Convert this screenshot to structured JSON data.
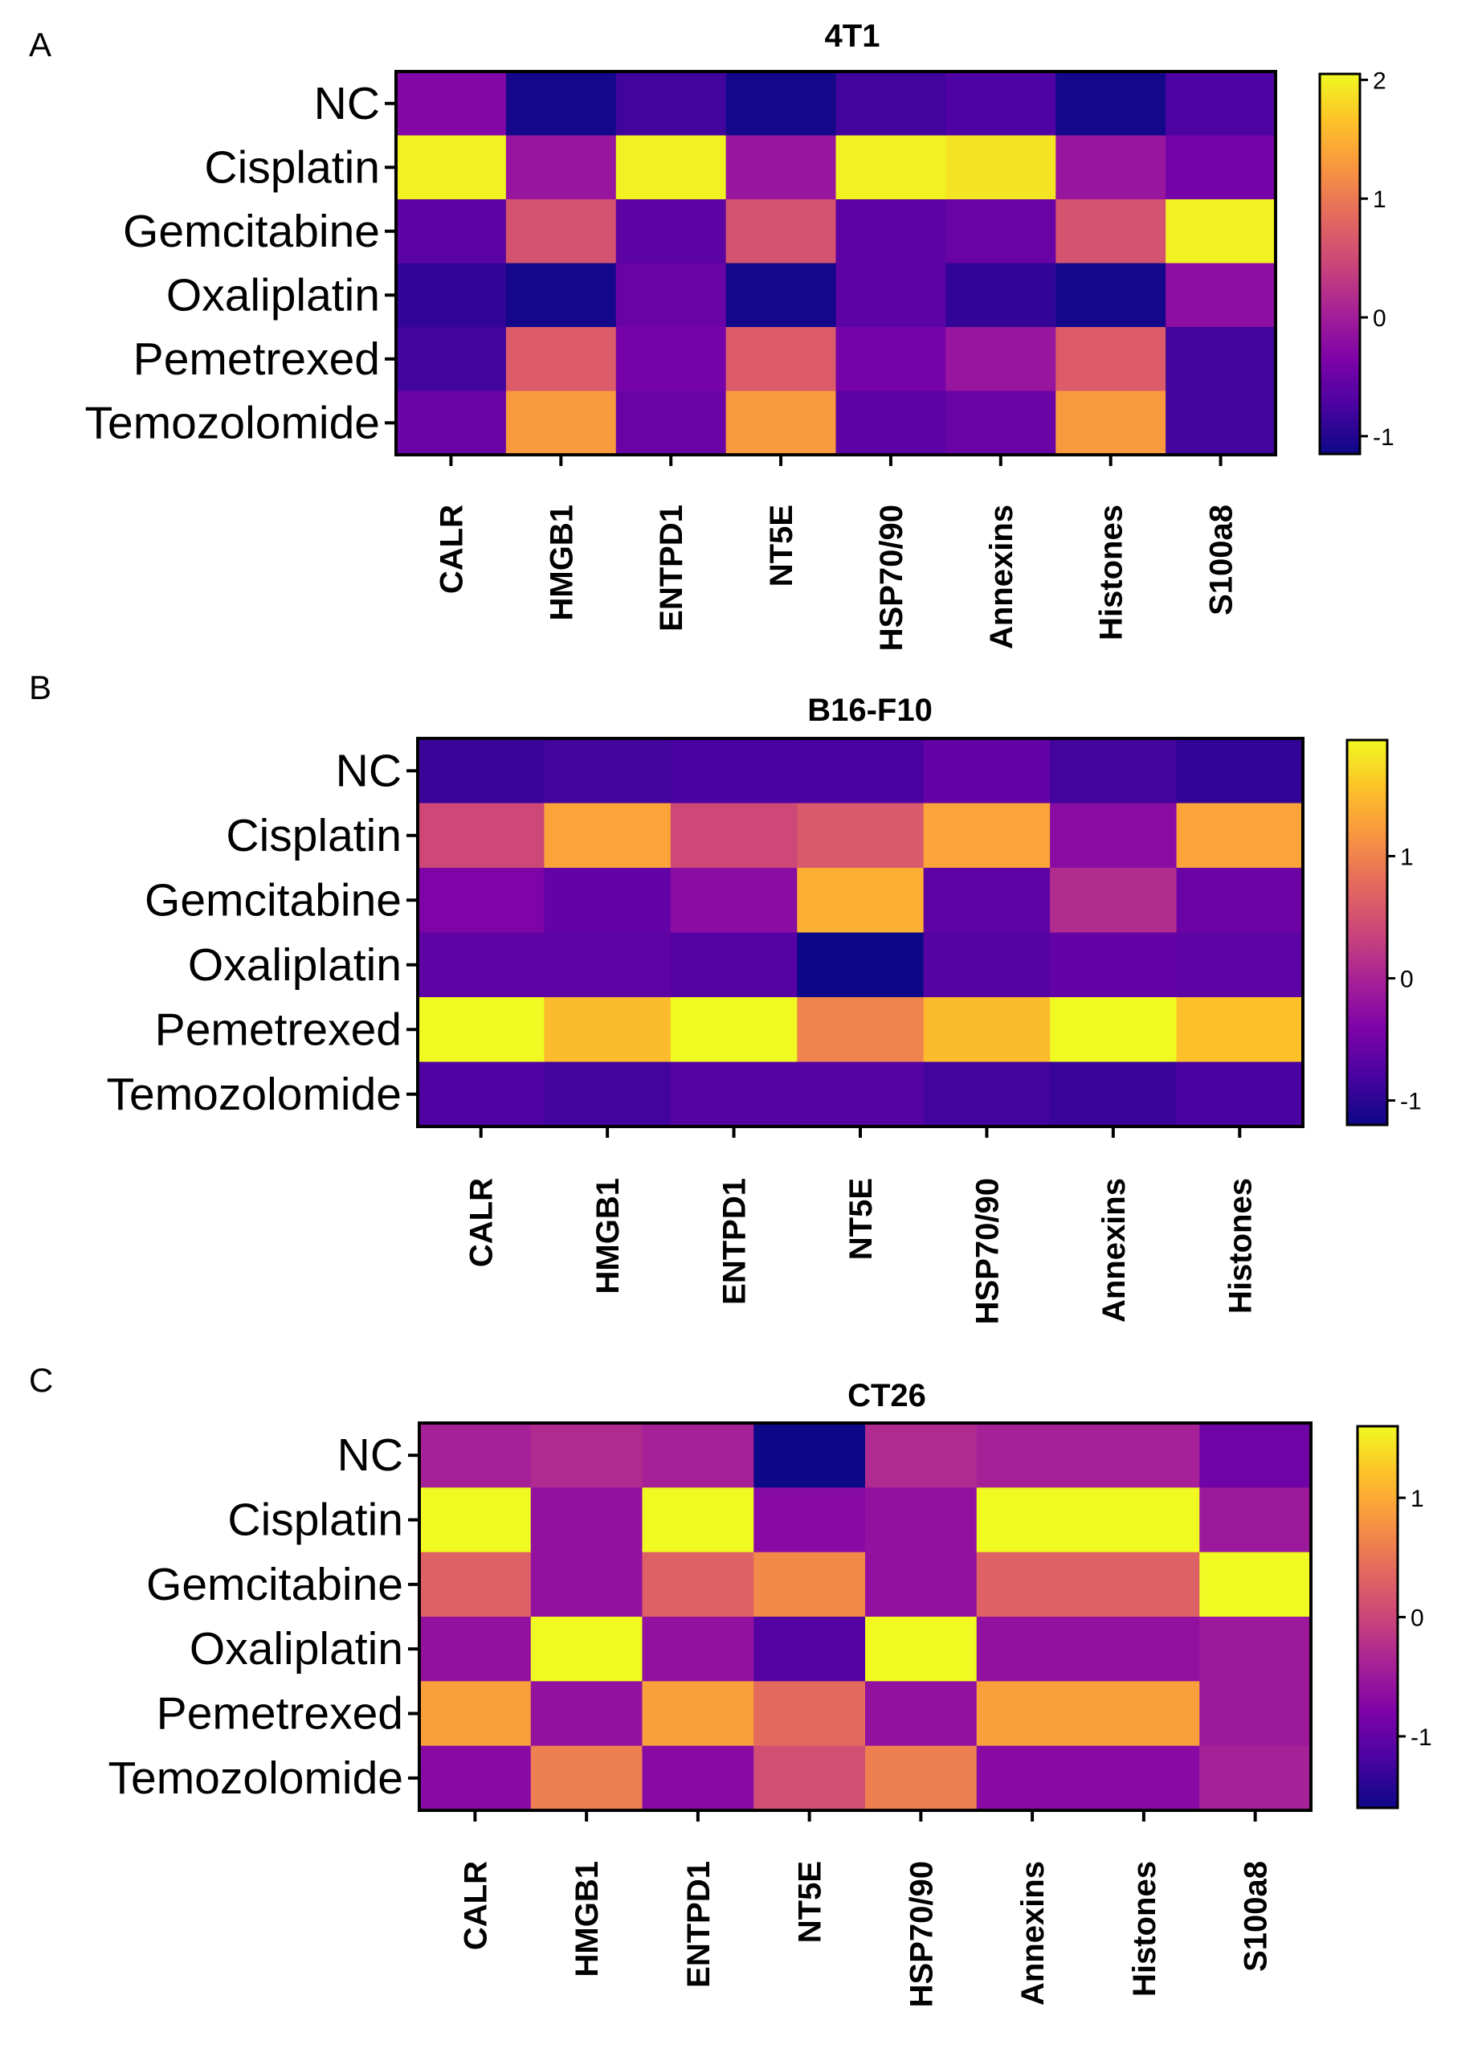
{
  "figure": {
    "panels": [
      "A",
      "B",
      "C"
    ]
  },
  "chart_data": [
    {
      "type": "heatmap",
      "panel": "A",
      "title": "4T1",
      "rows": [
        "NC",
        "Cisplatin",
        "Gemcitabine",
        "Oxaliplatin",
        "Pemetrexed",
        "Temozolomide"
      ],
      "columns": [
        "CALR",
        "HMGB1",
        "ENTPD1",
        "NT5E",
        "HSP70/90",
        "Annexins",
        "Histones",
        "S100a8"
      ],
      "values": [
        [
          -0.3,
          -1.1,
          -0.8,
          -1.1,
          -0.8,
          -0.7,
          -1.1,
          -0.7
        ],
        [
          2.0,
          -0.1,
          2.0,
          -0.1,
          2.0,
          1.9,
          -0.1,
          -0.4
        ],
        [
          -0.6,
          0.6,
          -0.6,
          0.6,
          -0.6,
          -0.5,
          0.6,
          2.0
        ],
        [
          -0.9,
          -1.1,
          -0.5,
          -1.1,
          -0.6,
          -0.9,
          -1.1,
          -0.2
        ],
        [
          -0.8,
          0.7,
          -0.4,
          0.7,
          -0.4,
          -0.1,
          0.7,
          -0.8
        ],
        [
          -0.5,
          1.3,
          -0.5,
          1.3,
          -0.6,
          -0.5,
          1.3,
          -0.8
        ]
      ],
      "colorbar": {
        "min": -1.15,
        "max": 2.05,
        "ticks": [
          2,
          1,
          0,
          -1
        ],
        "tick_labels": [
          "2",
          "1",
          "0",
          "-1"
        ]
      },
      "colormap": "plasma"
    },
    {
      "type": "heatmap",
      "panel": "B",
      "title": "B16-F10",
      "rows": [
        "NC",
        "Cisplatin",
        "Gemcitabine",
        "Oxaliplatin",
        "Pemetrexed",
        "Temozolomide"
      ],
      "columns": [
        "CALR",
        "HMGB1",
        "ENTPD1",
        "NT5E",
        "HSP70/90",
        "Annexins",
        "Histones"
      ],
      "values": [
        [
          -0.9,
          -0.85,
          -0.8,
          -0.8,
          -0.6,
          -0.85,
          -0.95
        ],
        [
          0.4,
          1.3,
          0.4,
          0.6,
          1.3,
          -0.3,
          1.3
        ],
        [
          -0.4,
          -0.6,
          -0.3,
          1.4,
          -0.65,
          0.1,
          -0.55
        ],
        [
          -0.65,
          -0.65,
          -0.7,
          -1.2,
          -0.7,
          -0.6,
          -0.65
        ],
        [
          1.95,
          1.5,
          1.95,
          1.0,
          1.5,
          1.95,
          1.55
        ],
        [
          -0.75,
          -0.85,
          -0.7,
          -0.7,
          -0.85,
          -0.9,
          -0.8
        ]
      ],
      "colorbar": {
        "min": -1.2,
        "max": 1.95,
        "ticks": [
          1,
          0,
          -1
        ],
        "tick_labels": [
          "1",
          "0",
          "-1"
        ]
      },
      "colormap": "plasma"
    },
    {
      "type": "heatmap",
      "panel": "C",
      "title": "CT26",
      "rows": [
        "NC",
        "Cisplatin",
        "Gemcitabine",
        "Oxaliplatin",
        "Pemetrexed",
        "Temozolomide"
      ],
      "columns": [
        "CALR",
        "HMGB1",
        "ENTPD1",
        "NT5E",
        "HSP70/90",
        "Annexins",
        "Histones",
        "S100a8"
      ],
      "values": [
        [
          -0.4,
          -0.3,
          -0.4,
          -1.6,
          -0.3,
          -0.4,
          -0.4,
          -0.9
        ],
        [
          1.6,
          -0.6,
          1.6,
          -0.7,
          -0.6,
          1.6,
          1.6,
          -0.5
        ],
        [
          0.3,
          -0.6,
          0.3,
          0.7,
          -0.6,
          0.3,
          0.3,
          1.6
        ],
        [
          -0.6,
          1.6,
          -0.6,
          -1.1,
          1.6,
          -0.6,
          -0.6,
          -0.5
        ],
        [
          0.9,
          -0.6,
          0.9,
          0.4,
          -0.6,
          0.9,
          0.9,
          -0.5
        ],
        [
          -0.7,
          0.6,
          -0.7,
          0.1,
          0.6,
          -0.7,
          -0.7,
          -0.4
        ]
      ],
      "colorbar": {
        "min": -1.6,
        "max": 1.6,
        "ticks": [
          1,
          0,
          -1
        ],
        "tick_labels": [
          "1",
          "0",
          "-1"
        ]
      },
      "colormap": "plasma"
    }
  ]
}
